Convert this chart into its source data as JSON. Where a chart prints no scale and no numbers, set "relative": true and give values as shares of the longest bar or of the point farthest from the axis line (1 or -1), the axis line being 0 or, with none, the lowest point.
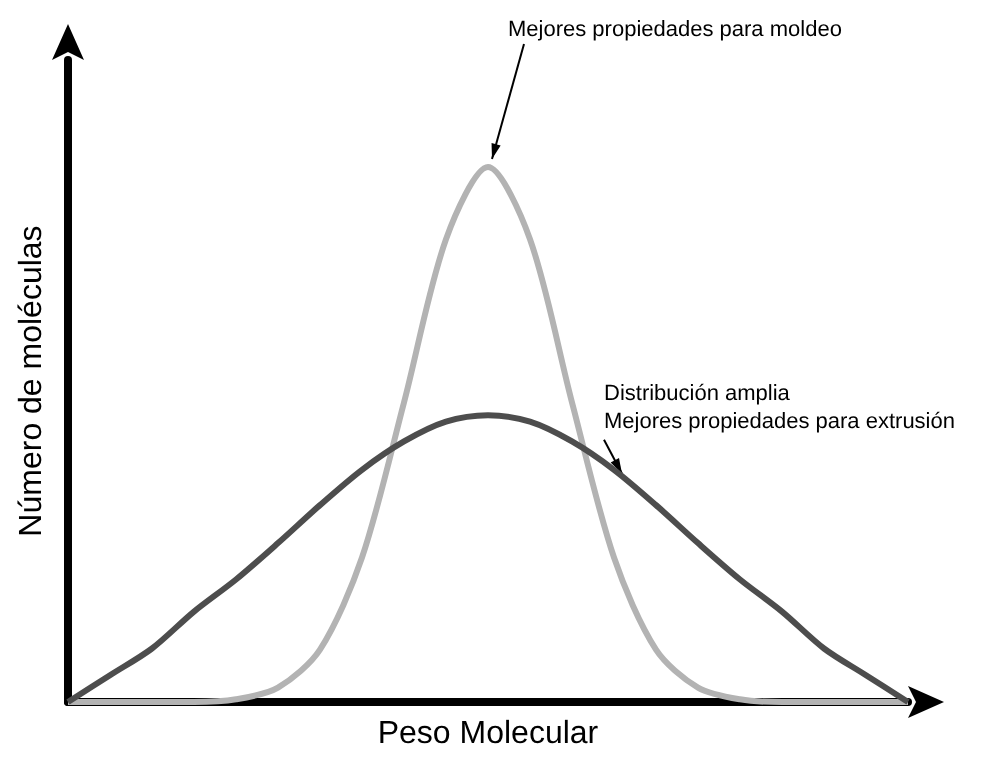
{
  "chart_data": {
    "type": "line",
    "relative": true,
    "xlabel": "Peso Molecular",
    "ylabel": "Número de moléculas",
    "categories": [
      null,
      null,
      null,
      null,
      null,
      null,
      null,
      null,
      null,
      null,
      null,
      null,
      null,
      null,
      null,
      null,
      null,
      null,
      null,
      null,
      null
    ],
    "series": [
      {
        "color": "#b3b3b3",
        "values": [
          0,
          0,
          0,
          0,
          0.005,
          0.027,
          0.098,
          0.27,
          0.56,
          0.865,
          1,
          0.865,
          0.56,
          0.27,
          0.098,
          0.027,
          0.005,
          0,
          0,
          0,
          0
        ]
      },
      {
        "color": "#4d4d4d",
        "values": [
          0,
          0.05,
          0.1,
          0.169,
          0.229,
          0.297,
          0.368,
          0.434,
          0.487,
          0.524,
          0.536,
          0.524,
          0.487,
          0.434,
          0.368,
          0.297,
          0.229,
          0.169,
          0.1,
          0.05,
          0
        ]
      }
    ],
    "annotations": [
      "Mejores propiedades para moldeo",
      "Distribución amplia\nMejores propiedades para extrusión"
    ]
  }
}
